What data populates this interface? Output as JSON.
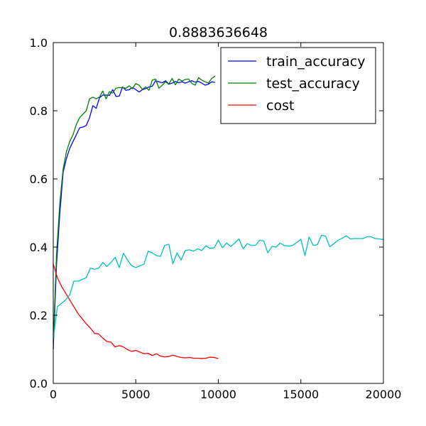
{
  "chart_data": {
    "type": "line",
    "title": "0.8883636648",
    "xlim": [
      0,
      20000
    ],
    "ylim": [
      0.0,
      1.0
    ],
    "xticks": [
      0,
      5000,
      10000,
      15000,
      20000
    ],
    "xtick_labels": [
      "0",
      "5000",
      "10000",
      "15000",
      "20000"
    ],
    "yticks": [
      0.0,
      0.2,
      0.4,
      0.6,
      0.8,
      1.0
    ],
    "ytick_labels": [
      "0.0",
      "0.2",
      "0.4",
      "0.6",
      "0.8",
      "1.0"
    ],
    "grid": false,
    "legend_position": "top-right",
    "series": [
      {
        "name": "train_accuracy",
        "color": "#0000ff",
        "in_legend": true,
        "x": [
          0,
          200,
          400,
          600,
          800,
          1000,
          1200,
          1400,
          1600,
          1800,
          2000,
          2200,
          2400,
          2600,
          2800,
          3000,
          3200,
          3400,
          3600,
          3800,
          4000,
          4200,
          4400,
          4600,
          4800,
          5000,
          5200,
          5400,
          5600,
          5800,
          6000,
          6200,
          6400,
          6600,
          6800,
          7000,
          7200,
          7400,
          7600,
          7800,
          8000,
          8200,
          8400,
          8600,
          8800,
          9000,
          9200,
          9400,
          9600,
          9800
        ],
        "values": [
          0.1,
          0.35,
          0.5,
          0.62,
          0.66,
          0.69,
          0.71,
          0.73,
          0.75,
          0.752,
          0.757,
          0.78,
          0.815,
          0.807,
          0.838,
          0.846,
          0.846,
          0.845,
          0.862,
          0.842,
          0.843,
          0.87,
          0.86,
          0.862,
          0.868,
          0.862,
          0.855,
          0.862,
          0.865,
          0.87,
          0.872,
          0.888,
          0.885,
          0.882,
          0.888,
          0.878,
          0.881,
          0.886,
          0.882,
          0.885,
          0.881,
          0.885,
          0.888,
          0.884,
          0.886,
          0.881,
          0.875,
          0.878,
          0.885,
          0.883
        ]
      },
      {
        "name": "test_accuracy",
        "color": "#008000",
        "in_legend": true,
        "x": [
          0,
          200,
          400,
          600,
          800,
          1000,
          1200,
          1400,
          1600,
          1800,
          2000,
          2200,
          2400,
          2600,
          2800,
          3000,
          3200,
          3400,
          3600,
          3800,
          4000,
          4200,
          4400,
          4600,
          4800,
          5000,
          5200,
          5400,
          5600,
          5800,
          6000,
          6200,
          6400,
          6600,
          6800,
          7000,
          7200,
          7400,
          7600,
          7800,
          8000,
          8200,
          8400,
          8600,
          8800,
          9000,
          9200,
          9400,
          9600,
          9800
        ],
        "values": [
          0.12,
          0.38,
          0.53,
          0.63,
          0.68,
          0.71,
          0.73,
          0.76,
          0.78,
          0.79,
          0.8,
          0.835,
          0.84,
          0.835,
          0.84,
          0.858,
          0.835,
          0.856,
          0.852,
          0.866,
          0.868,
          0.868,
          0.866,
          0.873,
          0.865,
          0.88,
          0.875,
          0.863,
          0.87,
          0.86,
          0.89,
          0.893,
          0.866,
          0.875,
          0.885,
          0.878,
          0.895,
          0.876,
          0.893,
          0.887,
          0.892,
          0.893,
          0.88,
          0.875,
          0.897,
          0.89,
          0.885,
          0.881,
          0.895,
          0.902
        ]
      },
      {
        "name": "cost",
        "color": "#ff0000",
        "in_legend": true,
        "x": [
          0,
          250,
          500,
          750,
          1000,
          1250,
          1500,
          1750,
          2000,
          2250,
          2500,
          2750,
          3000,
          3250,
          3500,
          3750,
          4000,
          4250,
          4500,
          4750,
          5000,
          5250,
          5500,
          5750,
          6000,
          6250,
          6500,
          6750,
          7000,
          7250,
          7500,
          7750,
          8000,
          8250,
          8500,
          8750,
          9000,
          9250,
          9500,
          9750,
          10000
        ],
        "values": [
          0.35,
          0.31,
          0.285,
          0.265,
          0.245,
          0.225,
          0.205,
          0.19,
          0.175,
          0.162,
          0.147,
          0.145,
          0.133,
          0.123,
          0.121,
          0.107,
          0.111,
          0.107,
          0.099,
          0.094,
          0.097,
          0.092,
          0.087,
          0.088,
          0.082,
          0.087,
          0.08,
          0.078,
          0.079,
          0.083,
          0.079,
          0.076,
          0.075,
          0.076,
          0.074,
          0.074,
          0.073,
          0.074,
          0.077,
          0.076,
          0.073
        ]
      },
      {
        "color": "#00bfbf",
        "in_legend": false,
        "x": [
          0,
          250,
          500,
          750,
          1000,
          1250,
          1500,
          1750,
          2000,
          2250,
          2500,
          2750,
          3000,
          3250,
          3500,
          3750,
          4000,
          4250,
          4500,
          4750,
          5000,
          5250,
          5500,
          5750,
          6000,
          6250,
          6500,
          6750,
          7000,
          7250,
          7500,
          7750,
          8000,
          8250,
          8500,
          8750,
          9000,
          9250,
          9500,
          9750,
          10000,
          10250,
          10500,
          10750,
          11000,
          11250,
          11500,
          11750,
          12000,
          12250,
          12500,
          12750,
          13000,
          13250,
          13500,
          13750,
          14000,
          14250,
          14500,
          14750,
          15000,
          15250,
          15500,
          15750,
          16000,
          16250,
          16500,
          16750,
          17000,
          17250,
          17500,
          17750,
          18000,
          18250,
          18500,
          18750,
          19000,
          19250,
          19500,
          19750,
          20000
        ],
        "values": [
          0.13,
          0.225,
          0.235,
          0.245,
          0.26,
          0.3,
          0.3,
          0.305,
          0.31,
          0.338,
          0.335,
          0.338,
          0.355,
          0.343,
          0.355,
          0.37,
          0.34,
          0.382,
          0.362,
          0.345,
          0.34,
          0.345,
          0.35,
          0.388,
          0.383,
          0.375,
          0.373,
          0.405,
          0.408,
          0.351,
          0.383,
          0.362,
          0.39,
          0.392,
          0.388,
          0.395,
          0.39,
          0.404,
          0.396,
          0.398,
          0.42,
          0.398,
          0.412,
          0.402,
          0.412,
          0.424,
          0.395,
          0.41,
          0.405,
          0.405,
          0.42,
          0.418,
          0.383,
          0.402,
          0.4,
          0.412,
          0.404,
          0.403,
          0.405,
          0.413,
          0.423,
          0.375,
          0.43,
          0.405,
          0.407,
          0.435,
          0.432,
          0.401,
          0.41,
          0.42,
          0.426,
          0.433,
          0.424,
          0.425,
          0.425,
          0.425,
          0.43,
          0.43,
          0.425,
          0.424,
          0.422
        ]
      }
    ]
  }
}
